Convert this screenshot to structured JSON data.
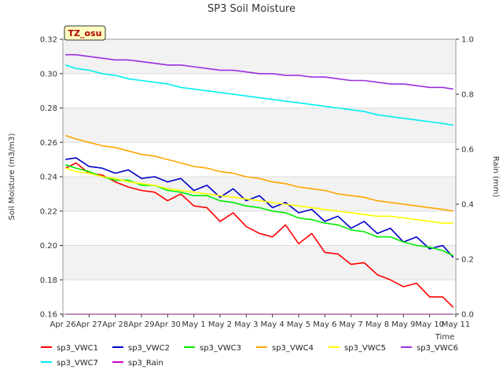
{
  "chart_data": {
    "type": "line",
    "title": "SP3 Soil Moisture",
    "xlabel": "Time",
    "ylabel": "Soil Moisture (m3/m3)",
    "y2label": "Rain (mm)",
    "badge": "TZ_osu",
    "ylim": [
      0.16,
      0.32
    ],
    "y2lim": [
      0.0,
      1.0
    ],
    "x_ticks": [
      "Apr 26",
      "Apr 27",
      "Apr 28",
      "Apr 29",
      "Apr 30",
      "May 1",
      "May 2",
      "May 3",
      "May 4",
      "May 5",
      "May 6",
      "May 7",
      "May 8",
      "May 9",
      "May 10",
      "May 11"
    ],
    "y_ticks": [
      "0.16",
      "0.18",
      "0.20",
      "0.22",
      "0.24",
      "0.26",
      "0.28",
      "0.30",
      "0.32"
    ],
    "y2_ticks": [
      "0.0",
      "0.2",
      "0.4",
      "0.6",
      "0.8",
      "1.0"
    ],
    "x_days": [
      0.1,
      0.5,
      1,
      1.5,
      2,
      2.5,
      3,
      3.5,
      4,
      4.5,
      5,
      5.5,
      6,
      6.5,
      7,
      7.5,
      8,
      8.5,
      9,
      9.5,
      10,
      10.5,
      11,
      11.5,
      12,
      12.5,
      13,
      13.5,
      14,
      14.5,
      14.9
    ],
    "grid": true,
    "legend_position": "bottom",
    "series": [
      {
        "name": "sp3_VWC1",
        "color": "#ff0000",
        "axis": "left",
        "values": [
          0.245,
          0.248,
          0.242,
          0.241,
          0.237,
          0.234,
          0.232,
          0.231,
          0.226,
          0.23,
          0.223,
          0.222,
          0.214,
          0.219,
          0.211,
          0.207,
          0.205,
          0.212,
          0.201,
          0.207,
          0.196,
          0.195,
          0.189,
          0.19,
          0.183,
          0.18,
          0.176,
          0.178,
          0.17,
          0.17,
          0.164
        ]
      },
      {
        "name": "sp3_VWC2",
        "color": "#0000cc",
        "axis": "left",
        "values": [
          0.25,
          0.251,
          0.246,
          0.245,
          0.242,
          0.244,
          0.239,
          0.24,
          0.237,
          0.239,
          0.232,
          0.235,
          0.228,
          0.233,
          0.226,
          0.229,
          0.222,
          0.225,
          0.219,
          0.221,
          0.214,
          0.217,
          0.21,
          0.214,
          0.207,
          0.21,
          0.202,
          0.205,
          0.198,
          0.2,
          0.193
        ]
      },
      {
        "name": "sp3_VWC3",
        "color": "#00ee00",
        "axis": "left",
        "values": [
          0.247,
          0.245,
          0.243,
          0.24,
          0.238,
          0.238,
          0.235,
          0.235,
          0.232,
          0.231,
          0.229,
          0.229,
          0.226,
          0.225,
          0.223,
          0.222,
          0.22,
          0.219,
          0.216,
          0.215,
          0.213,
          0.212,
          0.209,
          0.208,
          0.205,
          0.205,
          0.202,
          0.2,
          0.199,
          0.197,
          0.194
        ]
      },
      {
        "name": "sp3_VWC4",
        "color": "#ffa500",
        "axis": "left",
        "values": [
          0.264,
          0.262,
          0.26,
          0.258,
          0.257,
          0.255,
          0.253,
          0.252,
          0.25,
          0.248,
          0.246,
          0.245,
          0.243,
          0.242,
          0.24,
          0.239,
          0.237,
          0.236,
          0.234,
          0.233,
          0.232,
          0.23,
          0.229,
          0.228,
          0.226,
          0.225,
          0.224,
          0.223,
          0.222,
          0.221,
          0.22
        ]
      },
      {
        "name": "sp3_VWC5",
        "color": "#ffff00",
        "axis": "left",
        "values": [
          0.245,
          0.243,
          0.242,
          0.24,
          0.239,
          0.237,
          0.236,
          0.235,
          0.233,
          0.232,
          0.231,
          0.23,
          0.229,
          0.228,
          0.227,
          0.226,
          0.225,
          0.224,
          0.223,
          0.222,
          0.221,
          0.22,
          0.219,
          0.218,
          0.217,
          0.217,
          0.216,
          0.215,
          0.214,
          0.213,
          0.213
        ]
      },
      {
        "name": "sp3_VWC6",
        "color": "#9a30e0",
        "axis": "left",
        "values": [
          0.311,
          0.311,
          0.31,
          0.309,
          0.308,
          0.308,
          0.307,
          0.306,
          0.305,
          0.305,
          0.304,
          0.303,
          0.302,
          0.302,
          0.301,
          0.3,
          0.3,
          0.299,
          0.299,
          0.298,
          0.298,
          0.297,
          0.296,
          0.296,
          0.295,
          0.294,
          0.294,
          0.293,
          0.292,
          0.292,
          0.291
        ]
      },
      {
        "name": "sp3_VWC7",
        "color": "#00eeee",
        "axis": "left",
        "values": [
          0.305,
          0.303,
          0.302,
          0.3,
          0.299,
          0.297,
          0.296,
          0.295,
          0.294,
          0.292,
          0.291,
          0.29,
          0.289,
          0.288,
          0.287,
          0.286,
          0.285,
          0.284,
          0.283,
          0.282,
          0.281,
          0.28,
          0.279,
          0.278,
          0.276,
          0.275,
          0.274,
          0.273,
          0.272,
          0.271,
          0.27
        ]
      },
      {
        "name": "sp3_Rain",
        "color": "#cc00cc",
        "axis": "right",
        "values": [
          0,
          0,
          0,
          0,
          0,
          0,
          0,
          0,
          0,
          0,
          0,
          0,
          0,
          0,
          0,
          0,
          0,
          0,
          0,
          0,
          0,
          0,
          0,
          0,
          0,
          0,
          0,
          0,
          0,
          0,
          0
        ]
      }
    ]
  }
}
